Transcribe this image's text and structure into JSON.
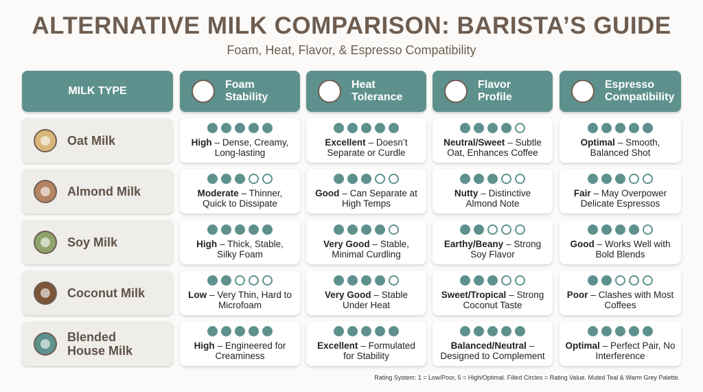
{
  "title": "ALTERNATIVE MILK COMPARISON: BARISTA’S GUIDE",
  "subtitle": "Foam, Heat, Flavor, & Espresso Compatibility",
  "max_rating": 5,
  "headers": [
    "MILK TYPE",
    "Foam Stability",
    "Heat Tolerance",
    "Flavor Profile",
    "Espresso Compatibility"
  ],
  "rows": [
    {
      "name": "Oat Milk",
      "cells": [
        {
          "rating": 5,
          "label": "High",
          "desc": "– Dense, Creamy, Long-lasting"
        },
        {
          "rating": 5,
          "label": "Excellent",
          "desc": "– Doesn’t Separate or Curdle"
        },
        {
          "rating": 4,
          "label": "Neutral/Sweet",
          "desc": "– Subtle Oat, Enhances Coffee"
        },
        {
          "rating": 5,
          "label": "Optimal",
          "desc": "– Smooth, Balanced Shot"
        }
      ]
    },
    {
      "name": "Almond Milk",
      "cells": [
        {
          "rating": 3,
          "label": "Moderate",
          "desc": "– Thinner, Quick to Dissipate"
        },
        {
          "rating": 3,
          "label": "Good",
          "desc": "– Can Separate at High Temps"
        },
        {
          "rating": 3,
          "label": "Nutty",
          "desc": "– Distinctive Almond Note"
        },
        {
          "rating": 3,
          "label": "Fair",
          "desc": "– May Overpower Delicate Espressos"
        }
      ]
    },
    {
      "name": "Soy Milk",
      "cells": [
        {
          "rating": 5,
          "label": "High",
          "desc": "– Thick, Stable, Silky Foam"
        },
        {
          "rating": 4,
          "label": "Very Good",
          "desc": "– Stable, Minimal Curdling"
        },
        {
          "rating": 2,
          "label": "Earthy/Beany",
          "desc": "– Strong Soy Flavor"
        },
        {
          "rating": 4,
          "label": "Good",
          "desc": "– Works Well with Bold Blends"
        }
      ]
    },
    {
      "name": "Coconut Milk",
      "cells": [
        {
          "rating": 2,
          "label": "Low",
          "desc": "– Very Thin, Hard to Microfoam"
        },
        {
          "rating": 4,
          "label": "Very Good",
          "desc": "– Stable Under Heat"
        },
        {
          "rating": 3,
          "label": "Sweet/Tropical",
          "desc": "– Strong Coconut Taste"
        },
        {
          "rating": 2,
          "label": "Poor",
          "desc": "– Clashes with Most Coffees"
        }
      ]
    },
    {
      "name": "Blended House Milk",
      "cells": [
        {
          "rating": 5,
          "label": "High",
          "desc": "– Engineered for Creaminess"
        },
        {
          "rating": 5,
          "label": "Excellent",
          "desc": "– Formulated for Stability"
        },
        {
          "rating": 5,
          "label": "Balanced/Neutral",
          "desc": "– Designed to Complement"
        },
        {
          "rating": 5,
          "label": "Optimal",
          "desc": "– Perfect Pair, No Interference"
        }
      ]
    }
  ],
  "footnote": "Rating System: 1 = Low/Poor, 5 = High/Optimal. Filled Circles = Rating Value. Muted Teal & Warm Grey Palette."
}
